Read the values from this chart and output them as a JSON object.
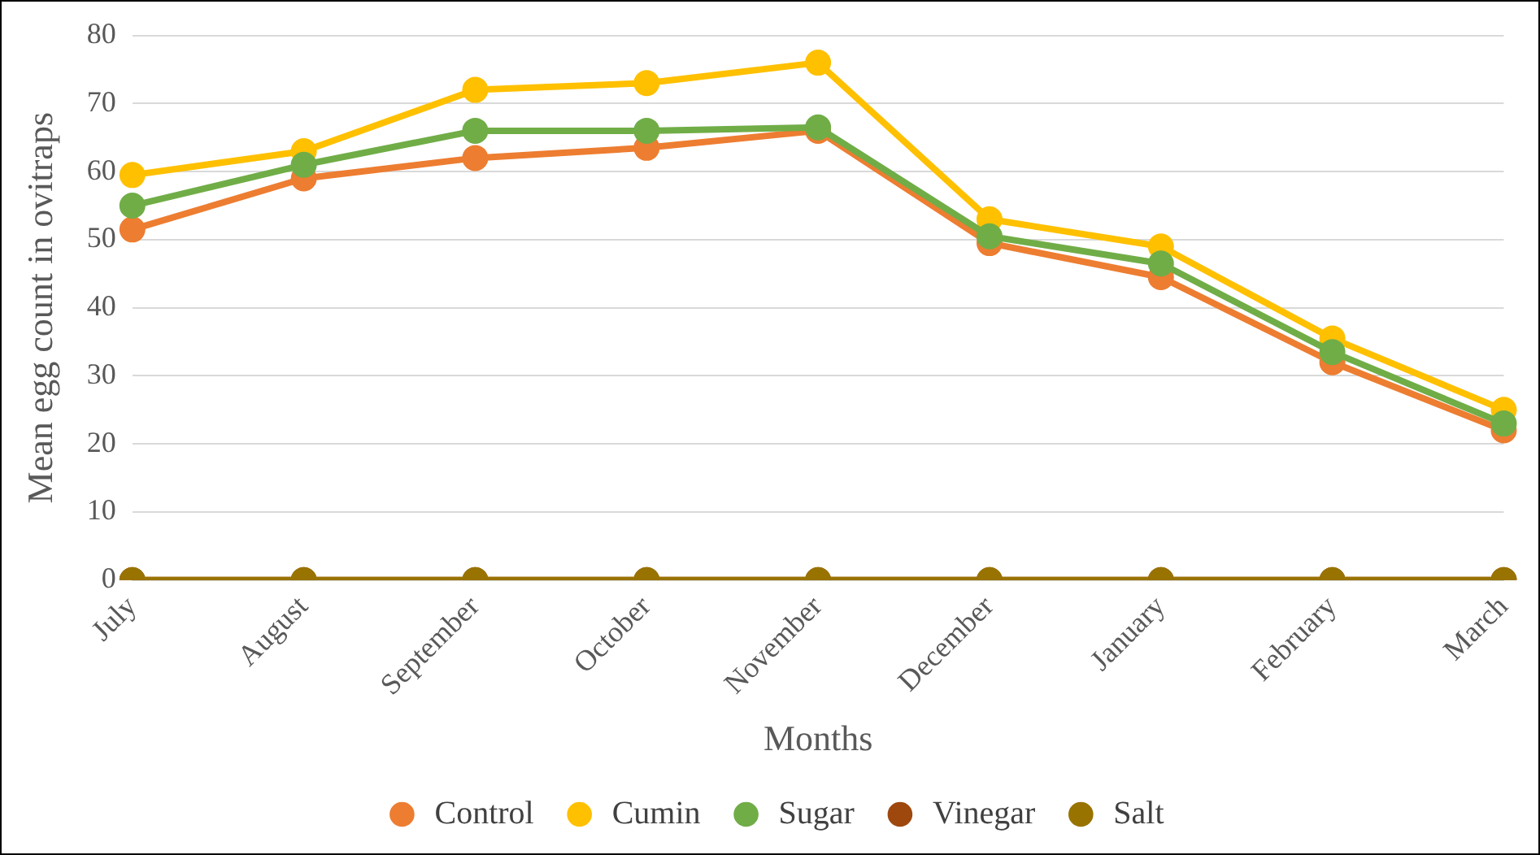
{
  "chart_data": {
    "type": "line",
    "xlabel": "Months",
    "ylabel": "Mean egg count in ovitraps",
    "categories": [
      "July",
      "August",
      "September",
      "October",
      "November",
      "December",
      "January",
      "February",
      "March"
    ],
    "series": [
      {
        "name": "Control",
        "color": "#ed7d31",
        "values": [
          51.5,
          59,
          62,
          63.5,
          66,
          49.5,
          44.5,
          32,
          22
        ]
      },
      {
        "name": "Cumin",
        "color": "#ffc000",
        "values": [
          59.5,
          63,
          72,
          73,
          76,
          53,
          49,
          35.5,
          25
        ]
      },
      {
        "name": "Sugar",
        "color": "#70ad47",
        "values": [
          55,
          61,
          66,
          66,
          66.5,
          50.5,
          46.5,
          33.5,
          23
        ]
      },
      {
        "name": "Vinegar",
        "color": "#9e480e",
        "values": [
          0,
          0,
          0,
          0,
          0,
          0,
          0,
          0,
          0
        ]
      },
      {
        "name": "Salt",
        "color": "#997300",
        "values": [
          0,
          0,
          0,
          0,
          0,
          0,
          0,
          0,
          0
        ]
      }
    ],
    "ylim": [
      0,
      80
    ],
    "yticks": [
      0,
      10,
      20,
      30,
      40,
      50,
      60,
      70,
      80
    ],
    "grid": "y",
    "legend": "bottom",
    "marker": "circle",
    "line_style": "solid"
  }
}
